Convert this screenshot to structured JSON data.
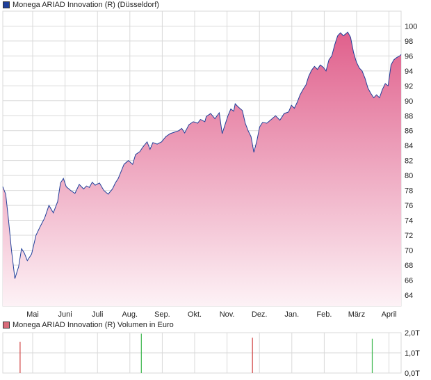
{
  "colors": {
    "line": "#1f3f9a",
    "area_top": "#e0608c",
    "area_bottom": "#fdf2f6",
    "grid": "#d9d9d9",
    "vol_red": "#d04040",
    "vol_green": "#39b54a",
    "legend_price_swatch": "#1f3f9a",
    "legend_volume_swatch": "#d96b7a"
  },
  "charts": [
    {
      "legend": "Monega ARIAD Innovation (R) (Düsseldorf)"
    },
    {
      "legend": "Monega ARIAD Innovation (R) Volumen in Euro"
    }
  ],
  "chart_data": [
    {
      "type": "area",
      "title": "Monega ARIAD Innovation (R) (Düsseldorf)",
      "ylim": [
        62.5,
        102
      ],
      "yticks": [
        64,
        66,
        68,
        70,
        72,
        74,
        76,
        78,
        80,
        82,
        84,
        86,
        88,
        90,
        92,
        94,
        96,
        98,
        100
      ],
      "xticks": [
        "Mai",
        "Juni",
        "Juli",
        "Aug.",
        "Sep.",
        "Okt.",
        "Nov.",
        "Dez.",
        "Jan.",
        "Feb.",
        "März",
        "April"
      ],
      "grid": true,
      "series": [
        {
          "points": [
            [
              0.0,
              78.5
            ],
            [
              0.1,
              77.5
            ],
            [
              0.2,
              74.0
            ],
            [
              0.3,
              70.0
            ],
            [
              0.42,
              66.2
            ],
            [
              0.55,
              67.8
            ],
            [
              0.65,
              70.2
            ],
            [
              0.75,
              69.6
            ],
            [
              0.85,
              68.6
            ],
            [
              1.0,
              69.5
            ],
            [
              1.15,
              72.0
            ],
            [
              1.3,
              73.2
            ],
            [
              1.45,
              74.3
            ],
            [
              1.6,
              76.0
            ],
            [
              1.75,
              75.0
            ],
            [
              1.9,
              76.5
            ],
            [
              2.0,
              79.0
            ],
            [
              2.1,
              79.6
            ],
            [
              2.2,
              78.5
            ],
            [
              2.35,
              78.0
            ],
            [
              2.5,
              77.6
            ],
            [
              2.65,
              78.8
            ],
            [
              2.8,
              78.2
            ],
            [
              2.9,
              78.6
            ],
            [
              3.0,
              78.4
            ],
            [
              3.1,
              79.1
            ],
            [
              3.2,
              78.7
            ],
            [
              3.35,
              79.0
            ],
            [
              3.5,
              78.0
            ],
            [
              3.65,
              77.5
            ],
            [
              3.8,
              78.2
            ],
            [
              3.9,
              79.0
            ],
            [
              4.0,
              79.6
            ],
            [
              4.2,
              81.5
            ],
            [
              4.35,
              82.0
            ],
            [
              4.5,
              81.5
            ],
            [
              4.6,
              82.8
            ],
            [
              4.75,
              83.2
            ],
            [
              4.85,
              83.8
            ],
            [
              5.0,
              84.5
            ],
            [
              5.1,
              83.5
            ],
            [
              5.2,
              84.4
            ],
            [
              5.35,
              84.2
            ],
            [
              5.5,
              84.5
            ],
            [
              5.65,
              85.2
            ],
            [
              5.8,
              85.6
            ],
            [
              5.95,
              85.8
            ],
            [
              6.1,
              86.0
            ],
            [
              6.2,
              86.3
            ],
            [
              6.3,
              85.7
            ],
            [
              6.45,
              86.8
            ],
            [
              6.6,
              87.2
            ],
            [
              6.75,
              87.0
            ],
            [
              6.85,
              87.5
            ],
            [
              7.0,
              87.2
            ],
            [
              7.05,
              87.9
            ],
            [
              7.2,
              88.3
            ],
            [
              7.35,
              87.6
            ],
            [
              7.5,
              88.4
            ],
            [
              7.6,
              85.6
            ],
            [
              7.7,
              86.8
            ],
            [
              7.8,
              88.0
            ],
            [
              7.9,
              88.9
            ],
            [
              8.0,
              88.6
            ],
            [
              8.05,
              89.6
            ],
            [
              8.15,
              89.2
            ],
            [
              8.3,
              88.7
            ],
            [
              8.4,
              87.0
            ],
            [
              8.5,
              86.0
            ],
            [
              8.6,
              85.2
            ],
            [
              8.7,
              83.1
            ],
            [
              8.8,
              84.6
            ],
            [
              8.9,
              86.5
            ],
            [
              9.0,
              87.1
            ],
            [
              9.15,
              87.0
            ],
            [
              9.3,
              87.5
            ],
            [
              9.45,
              88.0
            ],
            [
              9.6,
              87.4
            ],
            [
              9.75,
              88.3
            ],
            [
              9.9,
              88.5
            ],
            [
              10.0,
              89.4
            ],
            [
              10.1,
              89.0
            ],
            [
              10.2,
              89.8
            ],
            [
              10.3,
              90.8
            ],
            [
              10.4,
              91.5
            ],
            [
              10.5,
              92.1
            ],
            [
              10.6,
              93.3
            ],
            [
              10.7,
              94.1
            ],
            [
              10.8,
              94.6
            ],
            [
              10.9,
              94.2
            ],
            [
              11.0,
              94.8
            ],
            [
              11.1,
              94.5
            ],
            [
              11.2,
              94.0
            ],
            [
              11.3,
              95.5
            ],
            [
              11.4,
              96.0
            ],
            [
              11.5,
              97.5
            ],
            [
              11.6,
              98.7
            ],
            [
              11.7,
              99.1
            ],
            [
              11.8,
              98.7
            ],
            [
              11.95,
              99.2
            ],
            [
              12.05,
              98.5
            ],
            [
              12.15,
              96.5
            ],
            [
              12.25,
              95.2
            ],
            [
              12.35,
              94.4
            ],
            [
              12.45,
              94.0
            ],
            [
              12.55,
              93.0
            ],
            [
              12.65,
              91.7
            ],
            [
              12.75,
              91.0
            ],
            [
              12.85,
              90.4
            ],
            [
              12.95,
              90.8
            ],
            [
              13.05,
              90.4
            ],
            [
              13.15,
              91.5
            ],
            [
              13.25,
              92.3
            ],
            [
              13.35,
              92.0
            ],
            [
              13.45,
              94.8
            ],
            [
              13.55,
              95.5
            ],
            [
              13.65,
              95.8
            ],
            [
              13.75,
              96.0
            ],
            [
              13.8,
              96.2
            ]
          ]
        }
      ]
    },
    {
      "type": "bar",
      "title": "Monega ARIAD Innovation (R) Volumen in Euro",
      "ylim": [
        0,
        2
      ],
      "yticks": [
        "0,0T",
        "1,0T",
        "2,0T"
      ],
      "grid": true,
      "bars": [
        {
          "x": 0.6,
          "value": 1.55,
          "color": "red"
        },
        {
          "x": 4.8,
          "value": 1.95,
          "color": "green"
        },
        {
          "x": 8.65,
          "value": 1.75,
          "color": "red"
        },
        {
          "x": 12.8,
          "value": 1.7,
          "color": "green"
        }
      ]
    }
  ]
}
